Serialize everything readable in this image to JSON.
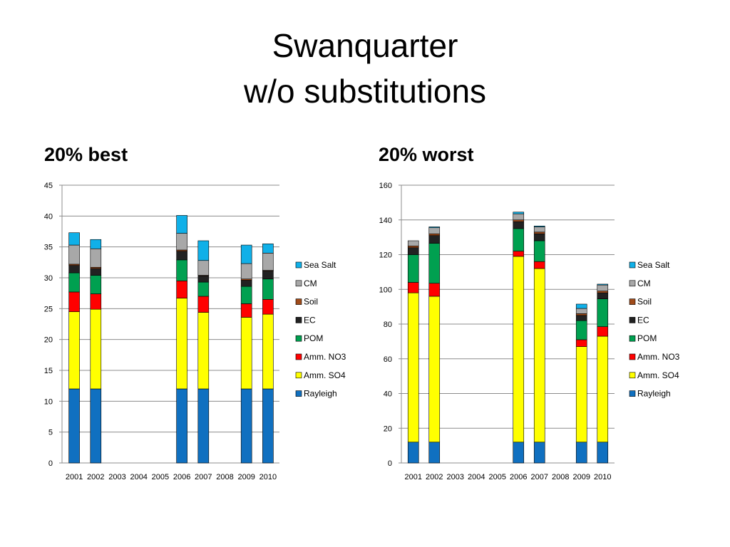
{
  "title_line1": "Swanquarter",
  "title_line2": "w/o substitutions",
  "colors": {
    "Rayleigh": "#1070c0",
    "Amm. SO4": "#ffff00",
    "Amm. NO3": "#ff0000",
    "POM": "#00a050",
    "EC": "#222222",
    "Soil": "#a04b1a",
    "CM": "#a8a8a8",
    "Sea Salt": "#10b0e8"
  },
  "chart_data": [
    {
      "type": "bar",
      "stacked": true,
      "title": "20% best",
      "categories": [
        "2001",
        "2002",
        "2003",
        "2004",
        "2005",
        "2006",
        "2007",
        "2008",
        "2009",
        "2010"
      ],
      "ylim": [
        0,
        45
      ],
      "yticks": [
        0,
        5,
        10,
        15,
        20,
        25,
        30,
        35,
        40,
        45
      ],
      "legend_position": "right",
      "series": [
        {
          "name": "Rayleigh",
          "values": [
            12,
            12,
            null,
            null,
            null,
            12,
            12,
            null,
            12,
            12
          ]
        },
        {
          "name": "Amm. SO4",
          "values": [
            12.5,
            12.9,
            null,
            null,
            null,
            14.7,
            12.4,
            null,
            11.6,
            12.1
          ]
        },
        {
          "name": "Amm. NO3",
          "values": [
            3.2,
            2.5,
            null,
            null,
            null,
            2.8,
            2.6,
            null,
            2.2,
            2.4
          ]
        },
        {
          "name": "POM",
          "values": [
            3.1,
            3.0,
            null,
            null,
            null,
            3.4,
            2.3,
            null,
            2.8,
            3.3
          ]
        },
        {
          "name": "EC",
          "values": [
            1.2,
            1.1,
            null,
            null,
            null,
            1.4,
            1.0,
            null,
            1.0,
            1.3
          ]
        },
        {
          "name": "Soil",
          "values": [
            0.2,
            0.2,
            null,
            null,
            null,
            0.2,
            0.1,
            null,
            0.2,
            0.1
          ]
        },
        {
          "name": "CM",
          "values": [
            3.1,
            3.0,
            null,
            null,
            null,
            2.7,
            2.4,
            null,
            2.5,
            2.8
          ]
        },
        {
          "name": "Sea Salt",
          "values": [
            2.0,
            1.5,
            null,
            null,
            null,
            2.9,
            3.2,
            null,
            3.0,
            1.5
          ]
        }
      ]
    },
    {
      "type": "bar",
      "stacked": true,
      "title": "20% worst",
      "categories": [
        "2001",
        "2002",
        "2003",
        "2004",
        "2005",
        "2006",
        "2007",
        "2008",
        "2009",
        "2010"
      ],
      "ylim": [
        0,
        160
      ],
      "yticks": [
        0,
        20,
        40,
        60,
        80,
        100,
        120,
        140,
        160
      ],
      "legend_position": "right",
      "series": [
        {
          "name": "Rayleigh",
          "values": [
            12,
            12,
            null,
            null,
            null,
            12,
            12,
            null,
            12,
            12
          ]
        },
        {
          "name": "Amm. SO4",
          "values": [
            86,
            84,
            null,
            null,
            null,
            107,
            100,
            null,
            55,
            61
          ]
        },
        {
          "name": "Amm. NO3",
          "values": [
            6,
            7.5,
            null,
            null,
            null,
            3,
            4,
            null,
            4,
            5.5
          ]
        },
        {
          "name": "POM",
          "values": [
            16,
            23,
            null,
            null,
            null,
            13,
            12,
            null,
            11,
            16
          ]
        },
        {
          "name": "EC",
          "values": [
            4,
            4.5,
            null,
            null,
            null,
            4,
            4,
            null,
            3,
            3.5
          ]
        },
        {
          "name": "Soil",
          "values": [
            1,
            1,
            null,
            null,
            null,
            1,
            1,
            null,
            1,
            1
          ]
        },
        {
          "name": "CM",
          "values": [
            3,
            3.5,
            null,
            null,
            null,
            3.5,
            3,
            null,
            3,
            3.5
          ]
        },
        {
          "name": "Sea Salt",
          "values": [
            0,
            0.5,
            null,
            null,
            null,
            1,
            0.5,
            null,
            2.5,
            0.5
          ]
        }
      ]
    }
  ]
}
